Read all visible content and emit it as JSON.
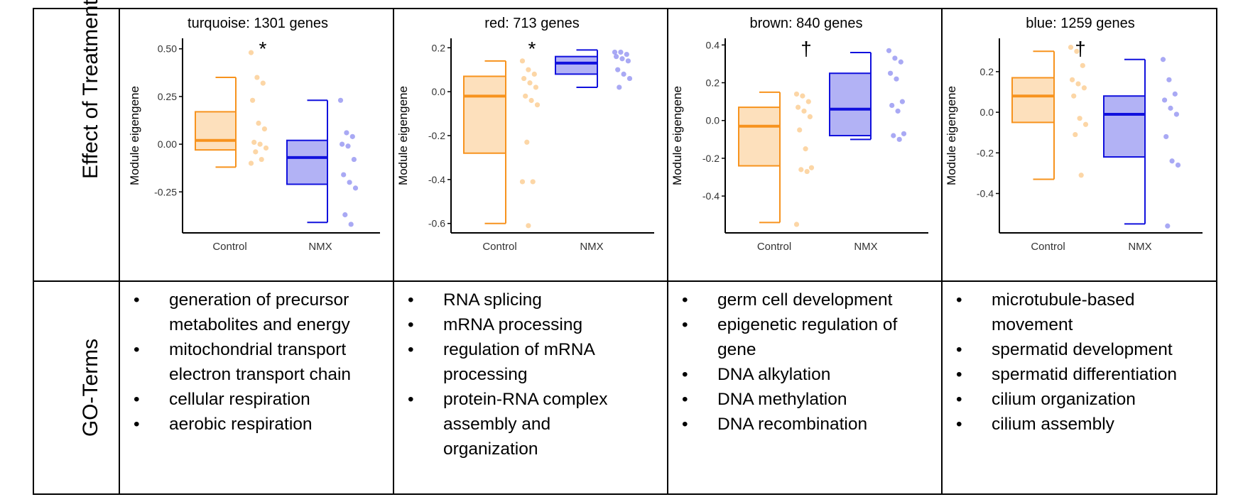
{
  "row_labels": {
    "top": "Effect of Treatment",
    "bottom": "GO-Terms"
  },
  "colors": {
    "control": "#f7931e",
    "control_fill": "#fde0bc",
    "control_point": "#fbc888",
    "nmx": "#1111dd",
    "nmx_fill": "#b2b2f5",
    "nmx_point": "#8c8cf0",
    "axis": "#000000",
    "border": "#000000"
  },
  "go_terms": [
    [
      "generation of precursor metabolites and energy",
      "mitochondrial transport electron transport chain",
      "cellular respiration",
      "aerobic respiration"
    ],
    [
      "RNA splicing",
      "mRNA processing",
      "regulation of mRNA processing",
      "protein-RNA complex assembly and organization"
    ],
    [
      "germ cell development",
      "epigenetic regulation of gene",
      "DNA alkylation",
      "DNA methylation",
      "DNA recombination"
    ],
    [
      "microtubule-based movement",
      "spermatid development",
      "spermatid differentiation",
      "cilium organization",
      "cilium assembly"
    ]
  ],
  "chart_data": [
    {
      "type": "box",
      "title": "turquoise: 1301 genes",
      "ylabel": "Module eigengene",
      "categories": [
        "Control",
        "NMX"
      ],
      "ylim": [
        -0.45,
        0.54
      ],
      "yticks": [
        0.5,
        0.25,
        0.0,
        -0.25
      ],
      "ytick_labels": [
        "0.50",
        "0.25",
        "0.00",
        "-0.25"
      ],
      "significance": "*",
      "boxes": [
        {
          "name": "Control",
          "min": -0.12,
          "q1": -0.03,
          "median": 0.02,
          "q3": 0.17,
          "max": 0.35,
          "points": [
            0.48,
            0.35,
            0.32,
            0.23,
            0.11,
            0.08,
            0.01,
            0.0,
            -0.02,
            -0.04,
            -0.08,
            -0.1
          ]
        },
        {
          "name": "NMX",
          "min": -0.41,
          "q1": -0.21,
          "median": -0.07,
          "q3": 0.02,
          "max": 0.23,
          "points": [
            0.23,
            0.06,
            0.04,
            0.0,
            -0.01,
            -0.08,
            -0.16,
            -0.2,
            -0.23,
            -0.37,
            -0.42
          ]
        }
      ]
    },
    {
      "type": "box",
      "title": "red: 713 genes",
      "ylabel": "Module eigengene",
      "categories": [
        "Control",
        "NMX"
      ],
      "ylim": [
        -0.63,
        0.23
      ],
      "yticks": [
        0.2,
        0.0,
        -0.2,
        -0.4,
        -0.6
      ],
      "ytick_labels": [
        "0.2",
        "0.0",
        "-0.2",
        "-0.4",
        "-0.6"
      ],
      "significance": "*",
      "boxes": [
        {
          "name": "Control",
          "min": -0.6,
          "q1": -0.28,
          "median": -0.02,
          "q3": 0.07,
          "max": 0.14,
          "points": [
            0.14,
            0.1,
            0.08,
            0.06,
            0.04,
            0.02,
            -0.02,
            -0.04,
            -0.06,
            -0.23,
            -0.41,
            -0.41,
            -0.61
          ]
        },
        {
          "name": "NMX",
          "min": 0.02,
          "q1": 0.08,
          "median": 0.13,
          "q3": 0.16,
          "max": 0.19,
          "points": [
            0.18,
            0.18,
            0.17,
            0.16,
            0.15,
            0.14,
            0.1,
            0.08,
            0.06,
            0.02
          ]
        }
      ]
    },
    {
      "type": "box",
      "title": "brown: 840 genes",
      "ylabel": "Module eigengene",
      "categories": [
        "Control",
        "NMX"
      ],
      "ylim": [
        -0.58,
        0.42
      ],
      "yticks": [
        0.4,
        0.2,
        0.0,
        -0.2,
        -0.4
      ],
      "ytick_labels": [
        "0.4",
        "0.2",
        "0.0",
        "-0.2",
        "-0.4"
      ],
      "significance": "†",
      "boxes": [
        {
          "name": "Control",
          "min": -0.54,
          "q1": -0.24,
          "median": -0.03,
          "q3": 0.07,
          "max": 0.15,
          "points": [
            0.14,
            0.13,
            0.1,
            0.07,
            0.05,
            0.02,
            -0.05,
            -0.15,
            -0.25,
            -0.26,
            -0.27,
            -0.55
          ]
        },
        {
          "name": "NMX",
          "min": -0.1,
          "q1": -0.08,
          "median": 0.06,
          "q3": 0.25,
          "max": 0.36,
          "points": [
            0.37,
            0.33,
            0.31,
            0.25,
            0.22,
            0.1,
            0.08,
            0.05,
            -0.07,
            -0.08,
            -0.1
          ]
        }
      ]
    },
    {
      "type": "box",
      "title": "blue: 1259 genes",
      "ylabel": "Module eigengene",
      "categories": [
        "Control",
        "NMX"
      ],
      "ylim": [
        -0.58,
        0.35
      ],
      "yticks": [
        0.2,
        0.0,
        -0.2,
        -0.4
      ],
      "ytick_labels": [
        "0.2",
        "0.0",
        "-0.2",
        "-0.4"
      ],
      "significance": "†",
      "boxes": [
        {
          "name": "Control",
          "min": -0.33,
          "q1": -0.05,
          "median": 0.08,
          "q3": 0.17,
          "max": 0.3,
          "points": [
            0.32,
            0.3,
            0.23,
            0.16,
            0.14,
            0.12,
            0.08,
            -0.03,
            -0.06,
            -0.11,
            -0.31
          ]
        },
        {
          "name": "NMX",
          "min": -0.55,
          "q1": -0.22,
          "median": -0.01,
          "q3": 0.08,
          "max": 0.26,
          "points": [
            0.26,
            0.16,
            0.09,
            0.06,
            0.02,
            -0.01,
            -0.12,
            -0.24,
            -0.26,
            -0.56
          ]
        }
      ]
    }
  ]
}
